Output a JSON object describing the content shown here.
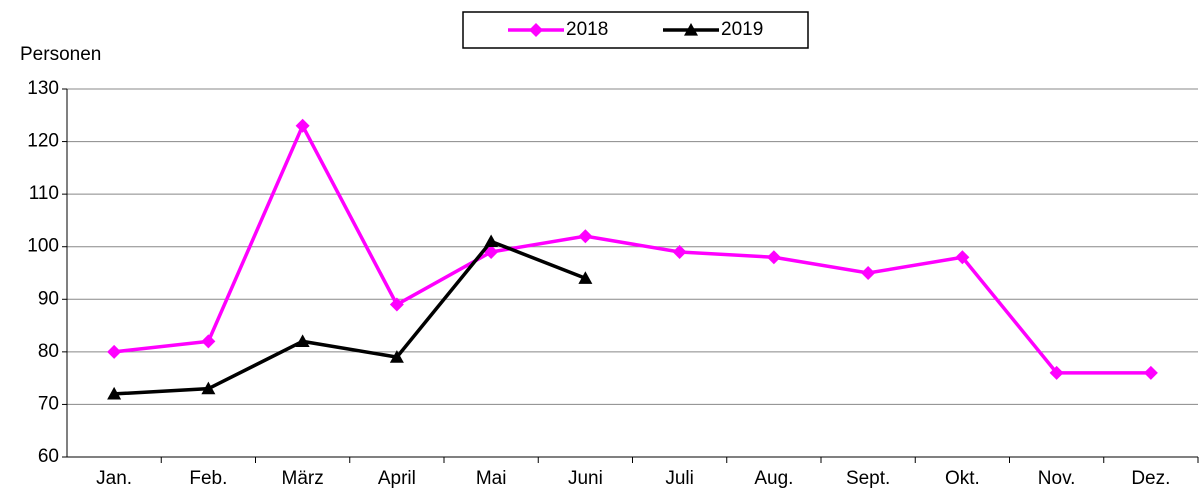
{
  "chart_data": {
    "type": "line",
    "y_label": "Personen",
    "categories": [
      "Jan.",
      "Feb.",
      "März",
      "April",
      "Mai",
      "Juni",
      "Juli",
      "Aug.",
      "Sept.",
      "Okt.",
      "Nov.",
      "Dez."
    ],
    "series": [
      {
        "name": "2018",
        "color": "#ff00ff",
        "marker": "diamond",
        "values": [
          80,
          82,
          123,
          89,
          99,
          102,
          99,
          98,
          95,
          98,
          76,
          76
        ]
      },
      {
        "name": "2019",
        "color": "#000000",
        "marker": "triangle",
        "values": [
          72,
          73,
          82,
          79,
          101,
          94,
          null,
          null,
          null,
          null,
          null,
          null
        ]
      }
    ],
    "ylim": [
      60,
      130
    ],
    "yticks": [
      60,
      70,
      80,
      90,
      100,
      110,
      120,
      130
    ],
    "grid": true,
    "legend": "top"
  }
}
